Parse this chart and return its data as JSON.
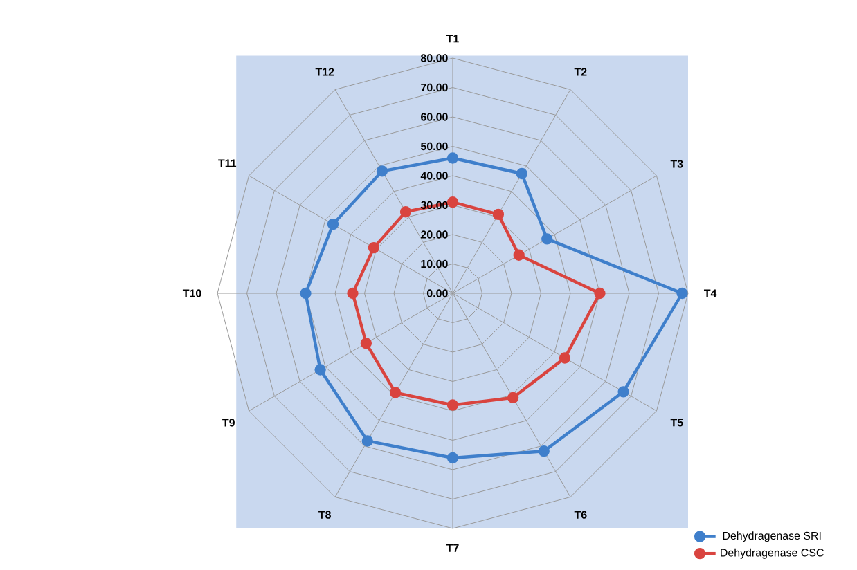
{
  "chart_data": {
    "type": "radar",
    "categories": [
      "T1",
      "T2",
      "T3",
      "T4",
      "T5",
      "T6",
      "T7",
      "T8",
      "T9",
      "T10",
      "T11",
      "T12"
    ],
    "series": [
      {
        "name": "Dehydragenase SRI",
        "color": "#3f7fcb",
        "values": [
          46,
          47,
          37,
          78,
          67,
          62,
          56,
          58,
          52,
          50,
          47,
          48
        ]
      },
      {
        "name": "Dehydragenase CSC",
        "color": "#d9443f",
        "values": [
          31,
          31,
          26,
          50,
          44,
          41,
          38,
          39,
          34,
          34,
          31,
          32
        ]
      }
    ],
    "ylim": [
      0,
      80
    ],
    "yticks": [
      {
        "value": 0,
        "label": "0.00"
      },
      {
        "value": 10,
        "label": "10.00"
      },
      {
        "value": 20,
        "label": "20.00"
      },
      {
        "value": 30,
        "label": "30.00"
      },
      {
        "value": 40,
        "label": "40.00"
      },
      {
        "value": 50,
        "label": "50.00"
      },
      {
        "value": 60,
        "label": "60.00"
      },
      {
        "value": 70,
        "label": "70.00"
      },
      {
        "value": 80,
        "label": "80.00"
      }
    ],
    "grid": true,
    "legend": "bottom right",
    "marker": "circle"
  }
}
